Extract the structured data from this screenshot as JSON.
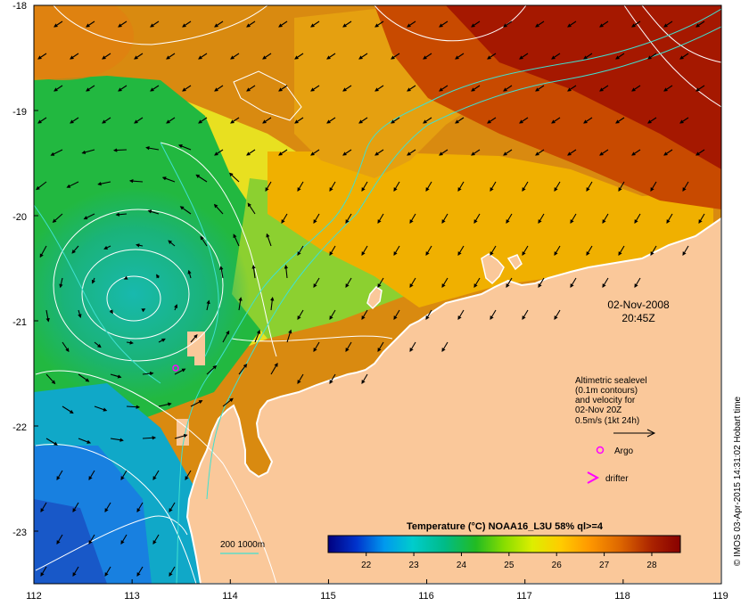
{
  "map": {
    "x_axis": {
      "min": 112,
      "max": 119,
      "ticks": [
        "112",
        "113",
        "114",
        "115",
        "116",
        "117",
        "118",
        "119"
      ]
    },
    "y_axis": {
      "min": -23.5,
      "max": -18,
      "ticks": [
        "-18",
        "-19",
        "-20",
        "-21",
        "-22",
        "-23"
      ]
    },
    "land_color": "#fac89a",
    "coastline_color": "#ffffff",
    "isobath_color": "#40e0d0",
    "contour_color": "#ffffff"
  },
  "timestamp": {
    "date": "02-Nov-2008",
    "time": "20:45Z"
  },
  "legend": {
    "velocity_lines": [
      "Altimetric sealevel",
      "(0.1m contours)",
      "and velocity for",
      "02-Nov 20Z",
      "0.5m/s (1kt 24h)"
    ],
    "argo_label": "Argo",
    "argo_color": "#ff00ff",
    "drifter_label": "drifter",
    "drifter_color": "#ff00ff",
    "isobath_label": "200  1000m"
  },
  "colorbar": {
    "title": "Temperature (°C) NOAA16_L3U 58% ql>=4",
    "ticks": [
      "22",
      "23",
      "24",
      "25",
      "26",
      "27",
      "28"
    ],
    "min": 21.2,
    "max": 28.6,
    "colors": [
      "#000080",
      "#0033cc",
      "#0099ee",
      "#00cccc",
      "#00bb88",
      "#22bb22",
      "#88dd00",
      "#ddee00",
      "#ffcc00",
      "#ff9900",
      "#dd6600",
      "#aa2200",
      "#880000"
    ]
  },
  "credit": "© IMOS 03-Apr-2015 14:31:02 Hobart time"
}
